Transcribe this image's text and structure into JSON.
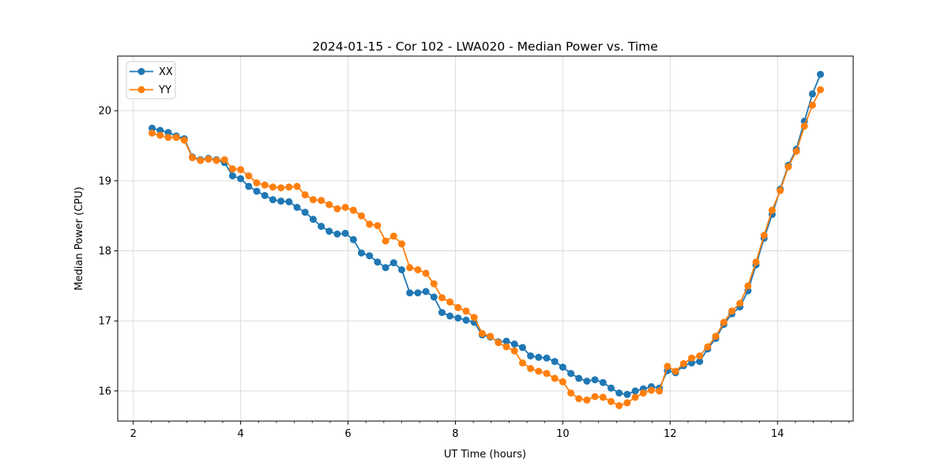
{
  "figure": {
    "background": "#ffffff",
    "grid_color": "#dcdcdc",
    "spine_color": "#000000",
    "legend": {
      "position": "upper-left",
      "border_color": "#cccccc",
      "entries": [
        "XX",
        "YY"
      ]
    }
  },
  "chart_data": {
    "type": "line",
    "title": "2024-01-15 - Cor 102 - LWA020 - Median Power vs. Time",
    "xlabel": "UT Time (hours)",
    "ylabel": "Median Power (CPU)",
    "xlim": [
      1.71,
      15.41
    ],
    "ylim": [
      15.57,
      20.78
    ],
    "xticks": [
      2,
      4,
      6,
      8,
      10,
      12,
      14
    ],
    "yticks": [
      16,
      17,
      18,
      19,
      20
    ],
    "x_minor_tick_step": 0.3333,
    "grid": true,
    "legend_position": "upper left",
    "marker": "circle",
    "x": [
      2.35,
      2.5,
      2.65,
      2.8,
      2.95,
      3.1,
      3.25,
      3.4,
      3.55,
      3.7,
      3.85,
      4.0,
      4.15,
      4.3,
      4.45,
      4.6,
      4.75,
      4.9,
      5.05,
      5.2,
      5.35,
      5.5,
      5.65,
      5.8,
      5.95,
      6.1,
      6.25,
      6.4,
      6.55,
      6.7,
      6.85,
      7.0,
      7.15,
      7.3,
      7.45,
      7.6,
      7.75,
      7.9,
      8.05,
      8.2,
      8.35,
      8.5,
      8.65,
      8.8,
      8.95,
      9.1,
      9.25,
      9.4,
      9.55,
      9.7,
      9.85,
      10.0,
      10.15,
      10.3,
      10.45,
      10.6,
      10.75,
      10.9,
      11.05,
      11.2,
      11.35,
      11.5,
      11.65,
      11.8,
      11.95,
      12.1,
      12.25,
      12.4,
      12.55,
      12.7,
      12.85,
      13.0,
      13.15,
      13.3,
      13.45,
      13.6,
      13.75,
      13.9,
      14.05,
      14.2,
      14.35,
      14.5,
      14.65,
      14.8
    ],
    "series": [
      {
        "name": "XX",
        "color": "#1f77b4",
        "values": [
          19.75,
          19.72,
          19.69,
          19.64,
          19.6,
          19.34,
          19.3,
          19.32,
          19.3,
          19.26,
          19.07,
          19.03,
          18.92,
          18.85,
          18.79,
          18.73,
          18.71,
          18.7,
          18.62,
          18.55,
          18.45,
          18.35,
          18.28,
          18.24,
          18.25,
          18.16,
          17.97,
          17.93,
          17.84,
          17.76,
          17.83,
          17.73,
          17.4,
          17.4,
          17.42,
          17.34,
          17.12,
          17.07,
          17.04,
          17.01,
          16.98,
          16.8,
          16.77,
          16.7,
          16.71,
          16.67,
          16.62,
          16.5,
          16.48,
          16.47,
          16.42,
          16.34,
          16.25,
          16.18,
          16.14,
          16.16,
          16.12,
          16.04,
          15.97,
          15.95,
          16.0,
          16.03,
          16.06,
          16.04,
          16.29,
          16.26,
          16.36,
          16.4,
          16.42,
          16.6,
          16.75,
          16.95,
          17.1,
          17.2,
          17.43,
          17.8,
          18.18,
          18.52,
          18.88,
          19.22,
          19.45,
          19.85,
          20.24,
          20.52
        ]
      },
      {
        "name": "YY",
        "color": "#ff7f0e",
        "values": [
          19.68,
          19.65,
          19.62,
          19.62,
          19.58,
          19.33,
          19.29,
          19.31,
          19.29,
          19.3,
          19.17,
          19.16,
          19.07,
          18.97,
          18.94,
          18.91,
          18.9,
          18.91,
          18.92,
          18.8,
          18.73,
          18.72,
          18.66,
          18.6,
          18.62,
          18.58,
          18.5,
          18.38,
          18.36,
          18.14,
          18.21,
          18.1,
          17.76,
          17.73,
          17.68,
          17.53,
          17.33,
          17.27,
          17.19,
          17.14,
          17.05,
          16.82,
          16.78,
          16.69,
          16.63,
          16.57,
          16.4,
          16.32,
          16.28,
          16.25,
          16.18,
          16.13,
          15.97,
          15.89,
          15.87,
          15.92,
          15.91,
          15.85,
          15.79,
          15.83,
          15.91,
          15.97,
          16.01,
          16.0,
          16.35,
          16.28,
          16.39,
          16.47,
          16.5,
          16.63,
          16.78,
          16.98,
          17.14,
          17.25,
          17.5,
          17.84,
          18.22,
          18.58,
          18.86,
          19.2,
          19.42,
          19.78,
          20.08,
          20.3
        ]
      }
    ]
  }
}
